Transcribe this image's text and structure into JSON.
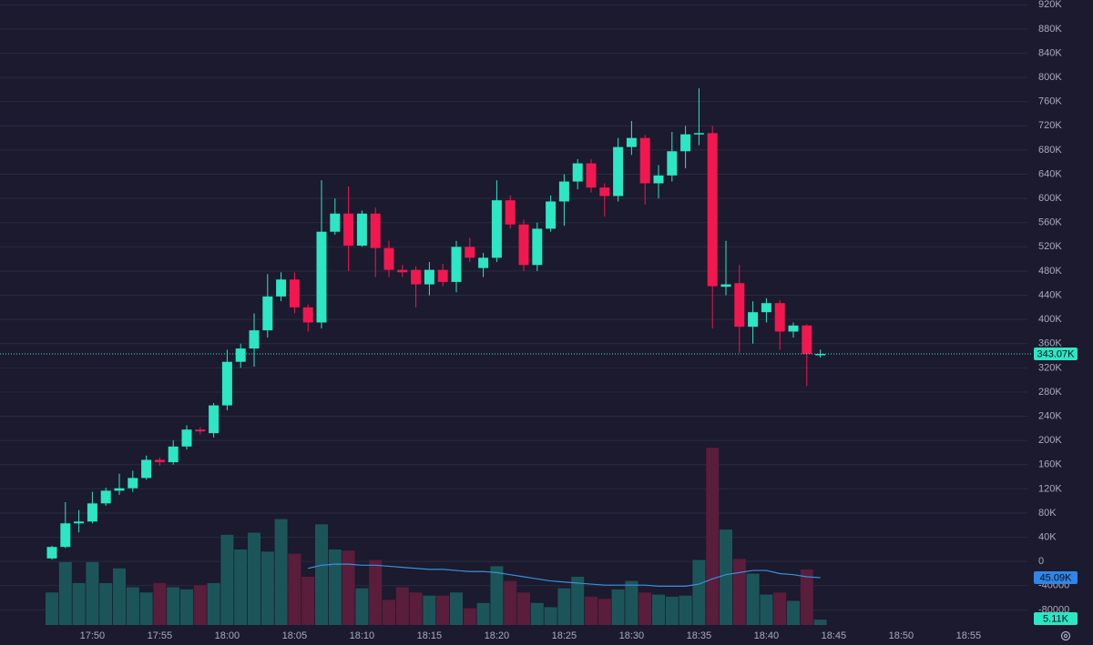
{
  "chart_data": {
    "type": "candlestick",
    "categories": [
      null,
      null,
      null,
      "17:50",
      null,
      null,
      null,
      null,
      "17:55",
      null,
      null,
      null,
      null,
      "18:00",
      null,
      null,
      null,
      null,
      "18:05",
      null,
      null,
      null,
      null,
      "18:10",
      null,
      null,
      null,
      null,
      "18:15",
      null,
      null,
      null,
      null,
      "18:20",
      null,
      null,
      null,
      null,
      "18:25",
      null,
      null,
      null,
      null,
      "18:30",
      null,
      null,
      null,
      null,
      "18:35",
      null,
      null,
      null,
      null,
      "18:40",
      null,
      null,
      null,
      null,
      "18:45",
      null,
      null,
      null,
      null,
      "18:50",
      null,
      null,
      null,
      null,
      "18:55",
      null,
      null,
      null
    ],
    "open": [
      5000,
      24000,
      63000,
      66000,
      96000,
      117000,
      121000,
      138000,
      168000,
      164000,
      190000,
      218000,
      212000,
      258000,
      330000,
      352000,
      382000,
      438000,
      466000,
      420000,
      395000,
      545000,
      575000,
      522000,
      575000,
      518000,
      482000,
      482000,
      458000,
      482000,
      462000,
      520000,
      485000,
      502000,
      597000,
      557000,
      490000,
      550000,
      595000,
      628000,
      658000,
      618000,
      604000,
      685000,
      700000,
      625000,
      638000,
      678000,
      706000,
      708000,
      454000,
      460000,
      388000,
      412000,
      427000,
      380000,
      390000,
      342000,
      null,
      null,
      null,
      null,
      null,
      null,
      null,
      null,
      null,
      null,
      null,
      null,
      null,
      null
    ],
    "high": [
      26000,
      98000,
      85000,
      115000,
      122000,
      145000,
      150000,
      175000,
      172000,
      200000,
      225000,
      222000,
      262000,
      350000,
      360000,
      410000,
      475000,
      478000,
      478000,
      425000,
      630000,
      600000,
      620000,
      580000,
      585000,
      530000,
      490000,
      488000,
      495000,
      492000,
      530000,
      535000,
      510000,
      630000,
      605000,
      565000,
      560000,
      605000,
      640000,
      665000,
      665000,
      625000,
      700000,
      728000,
      705000,
      655000,
      710000,
      720000,
      782000,
      720000,
      530000,
      490000,
      430000,
      435000,
      432000,
      395000,
      392000,
      350000,
      null,
      null,
      null,
      null,
      null,
      null,
      null,
      null,
      null,
      null,
      null,
      null,
      null,
      null
    ],
    "low": [
      3000,
      22000,
      48000,
      63000,
      92000,
      110000,
      115000,
      135000,
      158000,
      160000,
      185000,
      210000,
      205000,
      250000,
      320000,
      322000,
      370000,
      430000,
      410000,
      380000,
      385000,
      540000,
      480000,
      520000,
      470000,
      470000,
      470000,
      420000,
      440000,
      455000,
      445000,
      495000,
      470000,
      495000,
      550000,
      480000,
      480000,
      545000,
      555000,
      615000,
      610000,
      570000,
      595000,
      672000,
      590000,
      600000,
      628000,
      650000,
      688000,
      385000,
      440000,
      345000,
      360000,
      395000,
      350000,
      370000,
      290000,
      337000,
      null,
      null,
      null,
      null,
      null,
      null,
      null,
      null,
      null,
      null,
      null,
      null,
      null,
      null
    ],
    "close": [
      24000,
      63000,
      66000,
      96000,
      117000,
      121000,
      138000,
      168000,
      164000,
      190000,
      218000,
      215000,
      258000,
      330000,
      352000,
      382000,
      438000,
      466000,
      420000,
      395000,
      545000,
      575000,
      522000,
      575000,
      518000,
      482000,
      478000,
      458000,
      482000,
      462000,
      520000,
      502000,
      502000,
      597000,
      557000,
      490000,
      550000,
      595000,
      628000,
      658000,
      618000,
      604000,
      685000,
      700000,
      625000,
      638000,
      678000,
      706000,
      708000,
      455000,
      458000,
      388000,
      412000,
      427000,
      380000,
      390000,
      343000,
      343070,
      null,
      null,
      null,
      null,
      null,
      null,
      null,
      null,
      null,
      null,
      null,
      null,
      null,
      null
    ],
    "volume": [
      31000,
      60000,
      40000,
      60000,
      40000,
      54000,
      36000,
      31000,
      40000,
      36000,
      34000,
      38000,
      40000,
      86000,
      72000,
      88000,
      70000,
      101000,
      68000,
      46000,
      96000,
      72000,
      71000,
      35000,
      62000,
      24000,
      36000,
      31000,
      28000,
      28000,
      31000,
      16000,
      21000,
      56000,
      42000,
      31000,
      21000,
      17000,
      35000,
      46000,
      27000,
      25000,
      34000,
      42000,
      31000,
      29000,
      27000,
      28000,
      62000,
      169000,
      91000,
      63000,
      49000,
      29000,
      31000,
      23000,
      53000,
      5110,
      null,
      null,
      null,
      null,
      null,
      null,
      null,
      null,
      null,
      null,
      null,
      null,
      null,
      null
    ],
    "ma": [
      null,
      null,
      null,
      null,
      null,
      null,
      null,
      null,
      null,
      null,
      null,
      null,
      null,
      null,
      null,
      null,
      null,
      null,
      null,
      54000,
      57000,
      58000,
      58000,
      57000,
      57000,
      56000,
      55000,
      54000,
      53000,
      53000,
      52000,
      51000,
      51000,
      50000,
      48000,
      46000,
      44000,
      42000,
      41000,
      40000,
      39000,
      38000,
      38000,
      38000,
      38000,
      37000,
      37000,
      37000,
      39000,
      44000,
      48000,
      50000,
      52000,
      52000,
      49000,
      48000,
      46000,
      45090,
      null,
      null,
      null,
      null,
      null,
      null,
      null,
      null,
      null,
      null,
      null,
      null,
      null,
      null
    ],
    "price_label": "343.07K",
    "ma_label": "45.09K",
    "volume_label": "5.11K",
    "ylim": [
      -105000,
      928000
    ],
    "vlim": [
      0,
      596000
    ],
    "yticks": [
      {
        "value": 920000,
        "label": "920K"
      },
      {
        "value": 880000,
        "label": "880K"
      },
      {
        "value": 840000,
        "label": "840K"
      },
      {
        "value": 800000,
        "label": "800K"
      },
      {
        "value": 760000,
        "label": "760K"
      },
      {
        "value": 720000,
        "label": "720K"
      },
      {
        "value": 680000,
        "label": "680K"
      },
      {
        "value": 640000,
        "label": "640K"
      },
      {
        "value": 600000,
        "label": "600K"
      },
      {
        "value": 560000,
        "label": "560K"
      },
      {
        "value": 520000,
        "label": "520K"
      },
      {
        "value": 480000,
        "label": "480K"
      },
      {
        "value": 440000,
        "label": "440K"
      },
      {
        "value": 400000,
        "label": "400K"
      },
      {
        "value": 360000,
        "label": "360K"
      },
      {
        "value": 320000,
        "label": "320K"
      },
      {
        "value": 280000,
        "label": "280K"
      },
      {
        "value": 240000,
        "label": "240K"
      },
      {
        "value": 200000,
        "label": "200K"
      },
      {
        "value": 160000,
        "label": "160K"
      },
      {
        "value": 120000,
        "label": "120K"
      },
      {
        "value": 80000,
        "label": "80K"
      },
      {
        "value": 40000,
        "label": "40K"
      },
      0,
      -40000,
      -80000
    ],
    "grid": true,
    "up_color": "#2ce6c4",
    "down_color": "#f2174f",
    "volume_up_color": "#1c5559",
    "volume_down_color": "#5a1d3b",
    "ma_color": "#3a8fdc",
    "price_line_color": "#2ce6c4",
    "ma_label_color": "#2f86e8"
  }
}
